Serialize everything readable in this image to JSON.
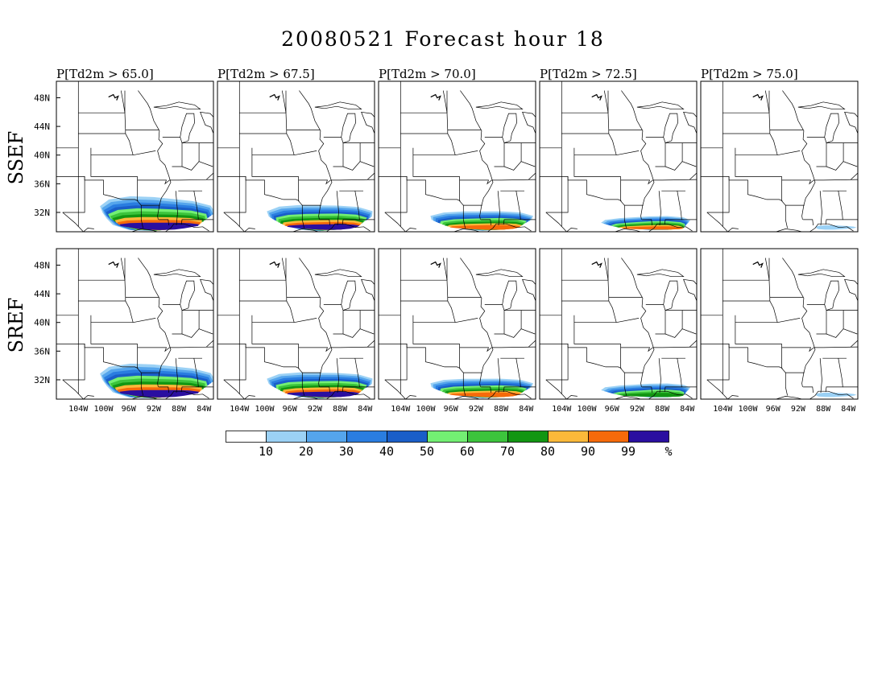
{
  "title": "20080521 Forecast hour 18",
  "panel_titles": [
    "P[Td2m > 65.0]",
    "P[Td2m > 67.5]",
    "P[Td2m > 70.0]",
    "P[Td2m > 72.5]",
    "P[Td2m > 75.0]"
  ],
  "row_labels": [
    "SSEF",
    "SREF"
  ],
  "lat_labels": [
    "48N",
    "44N",
    "40N",
    "36N",
    "32N"
  ],
  "lon_labels": [
    "104W",
    "100W",
    "96W",
    "92W",
    "88W",
    "84W"
  ],
  "colorbar": {
    "colors": [
      "#ffffff",
      "#9bd1f5",
      "#55a5ec",
      "#2a7de0",
      "#1a5ec8",
      "#73ef73",
      "#3cc43c",
      "#129612",
      "#fbb93a",
      "#f66a0a",
      "#2a0fa0"
    ],
    "labels": [
      "10",
      "20",
      "30",
      "40",
      "50",
      "60",
      "70",
      "80",
      "90",
      "99"
    ],
    "unit": "%"
  },
  "probability_fields": {
    "levels": [
      10,
      20,
      30,
      40,
      50,
      60,
      70,
      80,
      90,
      99
    ],
    "SSEF": [
      {
        "threshold": 65.0,
        "max_category": 99,
        "region": "Texas to Gulf coast, 30-34N, 100W-84W"
      },
      {
        "threshold": 67.5,
        "max_category": 99,
        "region": "Texas to Gulf coast, 30-33N, 98W-84W"
      },
      {
        "threshold": 70.0,
        "max_category": 90,
        "region": "Texas to Gulf coast, 30-32N, 98W-84W"
      },
      {
        "threshold": 72.5,
        "max_category": 90,
        "region": "Gulf coast, 30-31N, 96W-86W"
      },
      {
        "threshold": 75.0,
        "max_category": 10,
        "region": "Gulf coast, 30N, 90W-86W"
      }
    ],
    "SREF": [
      {
        "threshold": 65.0,
        "max_category": 99,
        "region": "Texas to Gulf coast, 30-34N, 100W-84W"
      },
      {
        "threshold": 67.5,
        "max_category": 99,
        "region": "Texas to Gulf coast, 30-33N, 98W-84W"
      },
      {
        "threshold": 70.0,
        "max_category": 90,
        "region": "Texas to Gulf coast, 30-32N, 98W-84W"
      },
      {
        "threshold": 72.5,
        "max_category": 70,
        "region": "Gulf coast, 30-32N, 96W-86W"
      },
      {
        "threshold": 75.0,
        "max_category": 10,
        "region": "Gulf coast, 30N, 92W-88W"
      }
    ]
  }
}
